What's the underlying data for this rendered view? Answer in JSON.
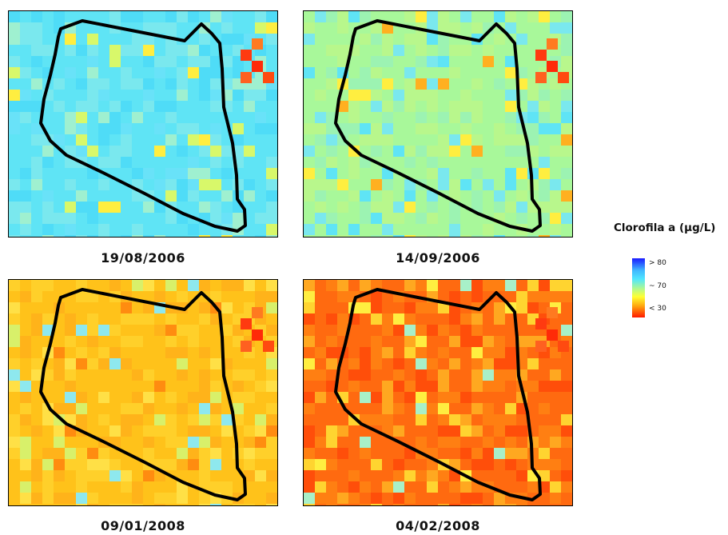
{
  "legend": {
    "title": "Clorofila a (µg/L)",
    "labels": [
      "> 80",
      "~ 70",
      "< 30"
    ],
    "colors": [
      "#1a1aff",
      "#4fe6ff",
      "#a8f89a",
      "#ffff33",
      "#ffaa10",
      "#ff1a00"
    ]
  },
  "panels": [
    {
      "date": "19/08/2006",
      "base_color": "#5fe4f5",
      "background_color": "#8fe7f0"
    },
    {
      "date": "14/09/2006",
      "base_color": "#a8f89a",
      "background_color": "#9fead8"
    },
    {
      "date": "09/01/2008",
      "base_color": "#ffc21a",
      "background_color": "#d8f06a"
    },
    {
      "date": "04/02/2008",
      "base_color": "#ff6a10",
      "background_color": "#ffcf30"
    }
  ],
  "outline_color": "#000000"
}
